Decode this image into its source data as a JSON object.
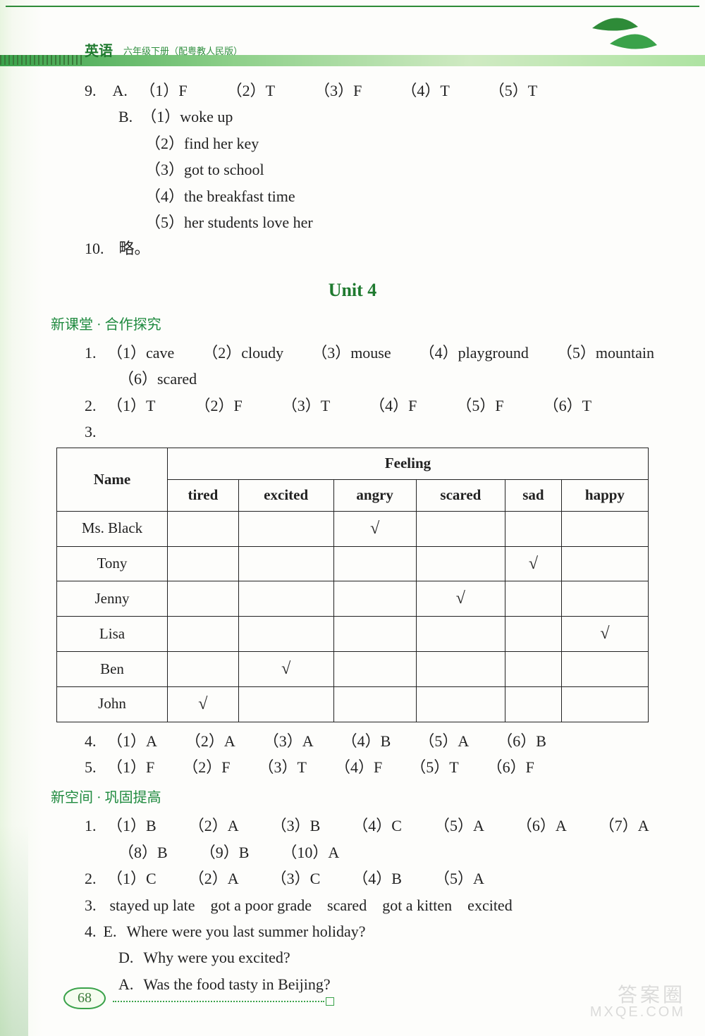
{
  "header": {
    "subject": "英语",
    "subtitle": "六年级下册（配粤教人民版）"
  },
  "q9": {
    "label": "9.",
    "A": {
      "lead": "A.",
      "items": [
        "（1）F",
        "（2）T",
        "（3）F",
        "（4）T",
        "（5）T"
      ]
    },
    "B": {
      "lead": "B.",
      "items": [
        "（1）woke up",
        "（2）find her key",
        "（3）got to school",
        "（4）the breakfast time",
        "（5）her students love her"
      ]
    }
  },
  "q10": {
    "label": "10.",
    "text": "略。"
  },
  "unit_title": "Unit 4",
  "section1": "新课堂 · 合作探究",
  "s1_q1": {
    "lead": "1.",
    "items": [
      "（1）cave",
      "（2）cloudy",
      "（3）mouse",
      "（4）playground",
      "（5）mountain",
      "（6）scared"
    ]
  },
  "s1_q2": {
    "lead": "2.",
    "items": [
      "（1）T",
      "（2）F",
      "（3）T",
      "（4）F",
      "（5）F",
      "（6）T"
    ]
  },
  "s1_q3_lead": "3.",
  "table": {
    "name_header": "Name",
    "feeling_header": "Feeling",
    "cols": [
      "tired",
      "excited",
      "angry",
      "scared",
      "sad",
      "happy"
    ],
    "rows": [
      {
        "name": "Ms. Black",
        "marks": [
          "",
          "",
          "√",
          "",
          "",
          ""
        ]
      },
      {
        "name": "Tony",
        "marks": [
          "",
          "",
          "",
          "",
          "√",
          ""
        ]
      },
      {
        "name": "Jenny",
        "marks": [
          "",
          "",
          "",
          "√",
          "",
          ""
        ]
      },
      {
        "name": "Lisa",
        "marks": [
          "",
          "",
          "",
          "",
          "",
          "√"
        ]
      },
      {
        "name": "Ben",
        "marks": [
          "",
          "√",
          "",
          "",
          "",
          ""
        ]
      },
      {
        "name": "John",
        "marks": [
          "√",
          "",
          "",
          "",
          "",
          ""
        ]
      }
    ]
  },
  "s1_q4": {
    "lead": "4.",
    "items": [
      "（1）A",
      "（2）A",
      "（3）A",
      "（4）B",
      "（5）A",
      "（6）B"
    ]
  },
  "s1_q5": {
    "lead": "5.",
    "items": [
      "（1）F",
      "（2）F",
      "（3）T",
      "（4）F",
      "（5）T",
      "（6）F"
    ]
  },
  "section2": "新空间 · 巩固提高",
  "s2_q1": {
    "lead": "1.",
    "line1": [
      "（1）B",
      "（2）A",
      "（3）B",
      "（4）C",
      "（5）A",
      "（6）A",
      "（7）A"
    ],
    "line2": [
      "（8）B",
      "（9）B",
      "（10）A"
    ]
  },
  "s2_q2": {
    "lead": "2.",
    "items": [
      "（1）C",
      "（2）A",
      "（3）C",
      "（4）B",
      "（5）A"
    ]
  },
  "s2_q3": {
    "lead": "3.",
    "text": "stayed up late　got a poor grade　scared　got a kitten　excited"
  },
  "s2_q4": {
    "lead": "4.",
    "lines": [
      {
        "tag": "E.",
        "text": "Where were you last summer holiday?"
      },
      {
        "tag": "D.",
        "text": "Why were you excited?"
      },
      {
        "tag": "A.",
        "text": "Was the food tasty in Beijing?"
      }
    ]
  },
  "page_number": "68",
  "watermark": {
    "l1": "答案圈",
    "l2": "MXQE.COM"
  },
  "gap": {
    "a": 80,
    "b": 56,
    "c": 96,
    "d": 90
  }
}
